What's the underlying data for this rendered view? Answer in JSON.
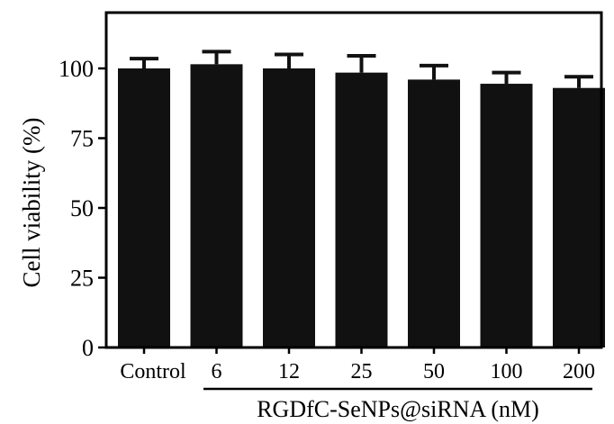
{
  "chart_data": {
    "type": "bar",
    "categories": [
      "Control",
      "6",
      "12",
      "25",
      "50",
      "100",
      "200"
    ],
    "values": [
      100,
      101.5,
      100,
      98.5,
      96,
      94.5,
      93
    ],
    "errors": [
      3.5,
      4.5,
      5,
      6,
      5,
      4,
      4
    ],
    "ylabel": "Cell viability (%)",
    "group_label": "RGDfC-SeNPs@siRNA (nM)",
    "ylim": [
      0,
      120
    ],
    "yticks": [
      0,
      25,
      50,
      75,
      100
    ],
    "grid": false,
    "bar_color": "#111111",
    "axis_color": "#000000"
  }
}
